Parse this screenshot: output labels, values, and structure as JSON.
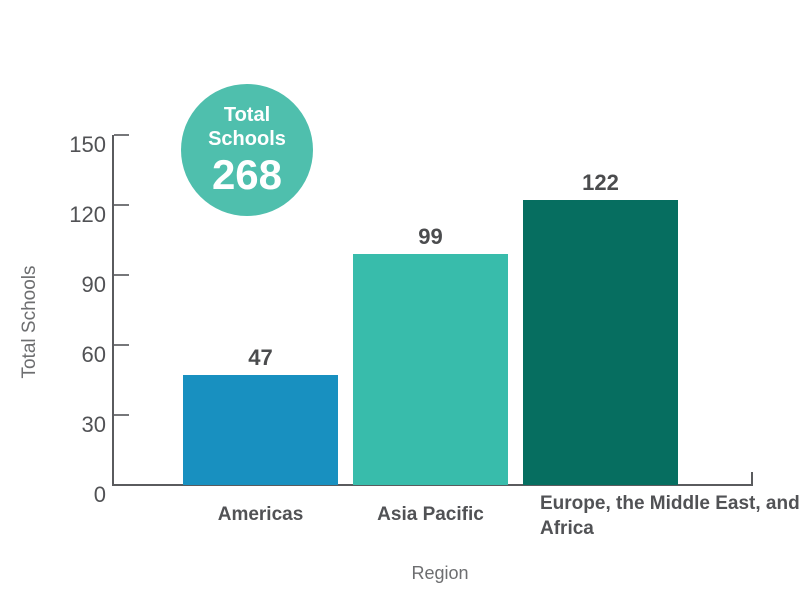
{
  "chart_data": {
    "type": "bar",
    "badge": {
      "label_lines": [
        "Total",
        "Schools"
      ],
      "value": "268"
    },
    "badge_color": "#4fbfad",
    "categories": [
      "Americas",
      "Asia Pacific",
      "Europe, the Middle East, and Africa"
    ],
    "values": [
      47,
      99,
      122
    ],
    "value_labels": [
      "47",
      "99",
      "122"
    ],
    "series_colors": [
      "#1890c0",
      "#38bcab",
      "#066e60"
    ],
    "xlabel": "Region",
    "ylabel": "Total Schools",
    "ylim": [
      0,
      150
    ],
    "yticks": [
      0,
      30,
      60,
      90,
      120,
      150
    ],
    "grid": false,
    "legend": "none"
  },
  "colors": {
    "axis": "#5a5b5e",
    "tick_mark": "#76777a",
    "tick_text": "#515255",
    "value_text": "#4b4c4e",
    "axis_title_text": "#6d6e70",
    "background": "#ffffff"
  }
}
